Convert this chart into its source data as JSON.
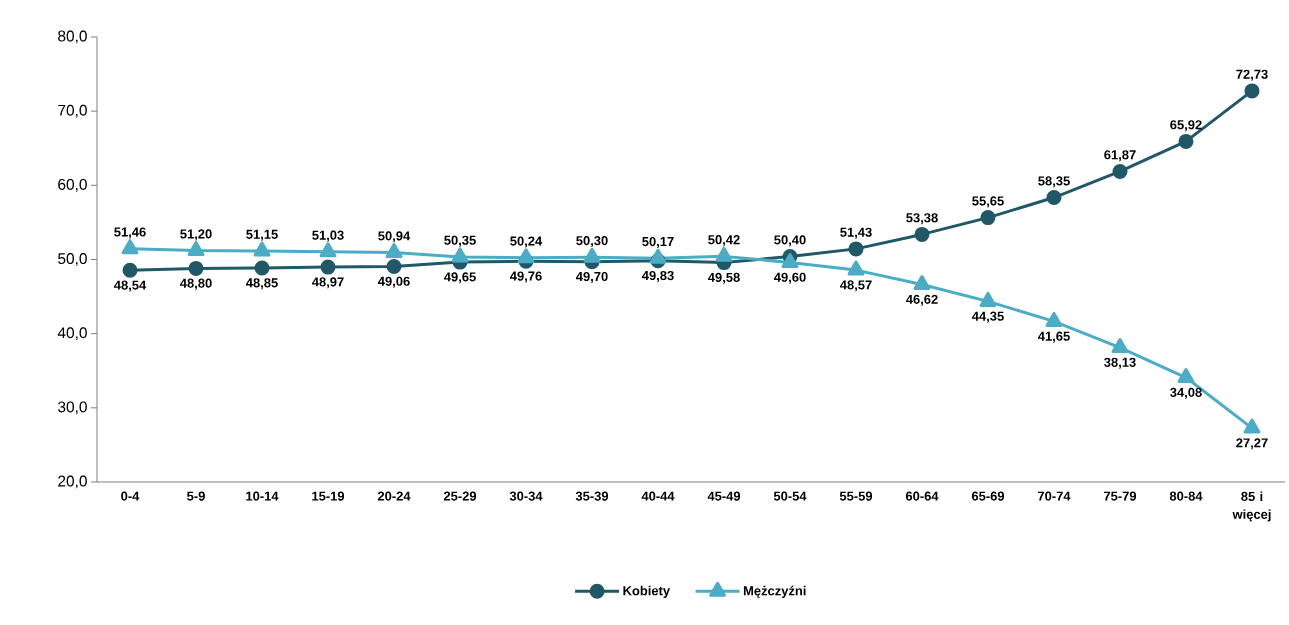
{
  "chart_data": {
    "type": "line",
    "categories": [
      "0-4",
      "5-9",
      "10-14",
      "15-19",
      "20-24",
      "25-29",
      "30-34",
      "35-39",
      "40-44",
      "45-49",
      "50-54",
      "55-59",
      "60-64",
      "65-69",
      "70-74",
      "75-79",
      "80-84",
      "85 i więcej"
    ],
    "series": [
      {
        "name": "Kobiety",
        "color": "#215868",
        "marker": "circle",
        "values": [
          48.54,
          48.8,
          48.85,
          48.97,
          49.06,
          49.65,
          49.76,
          49.7,
          49.83,
          49.58,
          50.4,
          51.43,
          53.38,
          55.65,
          58.35,
          61.87,
          65.92,
          72.73
        ],
        "value_labels": [
          "48,54",
          "48,80",
          "48,85",
          "48,97",
          "49,06",
          "49,65",
          "49,76",
          "49,70",
          "49,83",
          "49,58",
          "50,40",
          "51,43",
          "53,38",
          "55,65",
          "58,35",
          "61,87",
          "65,92",
          "72,73"
        ]
      },
      {
        "name": "Mężczyźni",
        "color": "#4bacc6",
        "marker": "triangle",
        "values": [
          51.46,
          51.2,
          51.15,
          51.03,
          50.94,
          50.35,
          50.24,
          50.3,
          50.17,
          50.42,
          49.6,
          48.57,
          46.62,
          44.35,
          41.65,
          38.13,
          34.08,
          27.27
        ],
        "value_labels": [
          "51,46",
          "51,20",
          "51,15",
          "51,03",
          "50,94",
          "50,35",
          "50,24",
          "50,30",
          "50,17",
          "50,42",
          "49,60",
          "48,57",
          "46,62",
          "44,35",
          "41,65",
          "38,13",
          "34,08",
          "27,27"
        ]
      }
    ],
    "ylim": [
      20,
      80
    ],
    "yticks": [
      {
        "value": 20,
        "label": "20,0"
      },
      {
        "value": 30,
        "label": "30,0"
      },
      {
        "value": 40,
        "label": "40,0"
      },
      {
        "value": 50,
        "label": "50,0"
      },
      {
        "value": 60,
        "label": "60,0"
      },
      {
        "value": 70,
        "label": "70,0"
      },
      {
        "value": 80,
        "label": "80,0"
      }
    ],
    "grid": false,
    "legend": "bottom",
    "line_style": "solid"
  }
}
